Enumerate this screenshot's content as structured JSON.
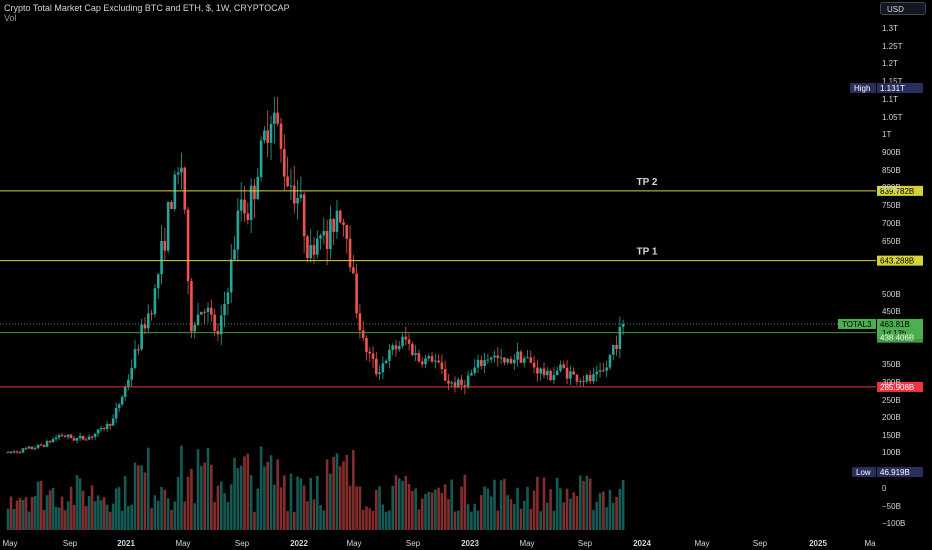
{
  "title": "Crypto Total Market Cap Excluding BTC and ETH, $, 1W, CRYPTOCAP",
  "subtitle": "Vol",
  "currency_button": "USD",
  "colors": {
    "background": "#000000",
    "up": "#26a69a",
    "down": "#ef5350",
    "tp_line": "#d4d43a",
    "support_line": "#ef3340",
    "current_line": "#4caf50",
    "high_badge": "#2a2e5c",
    "axis_text": "#d1d4dc"
  },
  "chart_data": {
    "type": "candlestick",
    "title": "Crypto Total Market Cap Excluding BTC and ETH, $, 1W, CRYPTOCAP",
    "interval": "1W",
    "x_axis": {
      "ticks": [
        "May",
        "Sep",
        "2021",
        "May",
        "Sep",
        "2022",
        "May",
        "Sep",
        "2023",
        "May",
        "Sep",
        "2024",
        "May",
        "Sep",
        "2025",
        "Ma"
      ]
    },
    "y_axis": {
      "scale": "log",
      "ticks": [
        "1.3T",
        "1.25T",
        "1.2T",
        "1.15T",
        "1.1T",
        "1.05T",
        "1T",
        "900B",
        "850B",
        "800B",
        "750B",
        "700B",
        "650B",
        "500B",
        "450B",
        "400B",
        "350B",
        "300B",
        "250B",
        "200B",
        "150B",
        "100B",
        "50B",
        "0",
        "−50B",
        "−100B"
      ],
      "range": [
        -100,
        1300
      ]
    },
    "horizontal_lines": [
      {
        "label": "TP 2",
        "value_label": "839.782B",
        "value": 839.782
      },
      {
        "label": "TP 1",
        "value_label": "643.288B",
        "value": 643.288
      },
      {
        "label": "",
        "value_label": "285.908B",
        "value": 285.908
      }
    ],
    "price_badges": {
      "high": {
        "label": "High",
        "value": "1.131T"
      },
      "low": {
        "label": "Low",
        "value": "46.919B"
      },
      "current": {
        "symbol": "TOTAL3",
        "value": "463.81B",
        "countdown": "1d 13h",
        "previous": "438.406B"
      }
    },
    "series": [
      {
        "kind": "candles",
        "close_path": [
          [
            "2020-04-01",
            98
          ],
          [
            "2020-05-01",
            105
          ],
          [
            "2020-06-01",
            112
          ],
          [
            "2020-07-01",
            125
          ],
          [
            "2020-08-01",
            150
          ],
          [
            "2020-09-01",
            138
          ],
          [
            "2020-10-01",
            140
          ],
          [
            "2020-11-01",
            160
          ],
          [
            "2020-12-01",
            190
          ],
          [
            "2021-01-01",
            290
          ],
          [
            "2021-02-01",
            430
          ],
          [
            "2021-03-01",
            540
          ],
          [
            "2021-04-01",
            780
          ],
          [
            "2021-05-01",
            930
          ],
          [
            "2021-05-15",
            450
          ],
          [
            "2021-06-15",
            520
          ],
          [
            "2021-07-15",
            420
          ],
          [
            "2021-08-15",
            660
          ],
          [
            "2021-09-01",
            820
          ],
          [
            "2021-09-15",
            780
          ],
          [
            "2021-10-15",
            950
          ],
          [
            "2021-11-05",
            1090
          ],
          [
            "2021-12-01",
            900
          ],
          [
            "2022-01-01",
            820
          ],
          [
            "2022-01-25",
            650
          ],
          [
            "2022-02-15",
            740
          ],
          [
            "2022-03-01",
            680
          ],
          [
            "2022-03-25",
            800
          ],
          [
            "2022-04-15",
            720
          ],
          [
            "2022-05-01",
            540
          ],
          [
            "2022-05-15",
            420
          ],
          [
            "2022-06-15",
            330
          ],
          [
            "2022-07-15",
            380
          ],
          [
            "2022-08-15",
            420
          ],
          [
            "2022-09-15",
            360
          ],
          [
            "2022-10-15",
            365
          ],
          [
            "2022-11-15",
            300
          ],
          [
            "2022-12-15",
            290
          ],
          [
            "2023-01-15",
            340
          ],
          [
            "2023-02-15",
            375
          ],
          [
            "2023-03-15",
            350
          ],
          [
            "2023-04-15",
            380
          ],
          [
            "2023-05-15",
            345
          ],
          [
            "2023-06-15",
            315
          ],
          [
            "2023-07-15",
            340
          ],
          [
            "2023-08-15",
            310
          ],
          [
            "2023-09-15",
            305
          ],
          [
            "2023-10-15",
            330
          ],
          [
            "2023-11-01",
            400
          ],
          [
            "2023-11-15",
            438
          ],
          [
            "2023-11-22",
            463
          ]
        ]
      },
      {
        "kind": "volume",
        "name": "Vol"
      }
    ],
    "annotations": [
      "TP 2",
      "TP 1"
    ],
    "grid": false
  }
}
